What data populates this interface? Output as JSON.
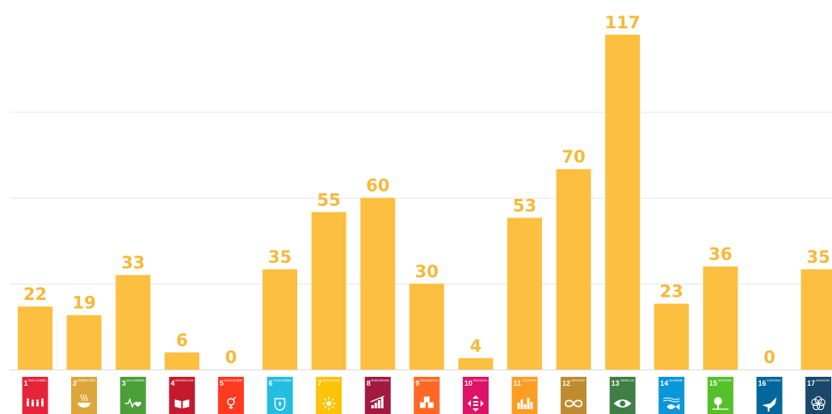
{
  "chart_data": {
    "type": "bar",
    "title": "",
    "xlabel": "",
    "ylabel": "",
    "ylim": [
      0,
      120
    ],
    "grid": true,
    "bar_color": "#FDBF40",
    "label_color": "#F6B93B",
    "grid_color": "#E6E6E6",
    "categories": [
      {
        "number": "1",
        "text": "FIN DE LA POBREZA",
        "color": "#E5243B",
        "icon": "family-icon"
      },
      {
        "number": "2",
        "text": "HAMBRE CERO",
        "color": "#DDA63A",
        "icon": "bowl-icon"
      },
      {
        "number": "3",
        "text": "SALUD Y BIENESTAR",
        "color": "#4C9F38",
        "icon": "heartbeat-icon"
      },
      {
        "number": "4",
        "text": "EDUCACIÓN DE CALIDAD",
        "color": "#C5192D",
        "icon": "book-icon"
      },
      {
        "number": "5",
        "text": "IGUALDAD DE GÉNERO",
        "color": "#FF3A21",
        "icon": "gender-icon"
      },
      {
        "number": "6",
        "text": "AGUA LIMPIA Y SANEAMIENTO",
        "color": "#26BDE2",
        "icon": "water-drop-icon"
      },
      {
        "number": "7",
        "text": "ENERGÍA ASEQUIBLE Y NO CONTAMINANTE",
        "color": "#FCC30B",
        "icon": "sun-icon"
      },
      {
        "number": "8",
        "text": "TRABAJO DECENTE Y CRECIMIENTO ECONÓMICO",
        "color": "#A21942",
        "icon": "growth-chart-icon"
      },
      {
        "number": "9",
        "text": "INDUSTRIA, INNOVACIÓN E INFRAESTRUCTURA",
        "color": "#FD6925",
        "icon": "cubes-icon"
      },
      {
        "number": "10",
        "text": "REDUCCIÓN DE LAS DESIGUALDADES",
        "color": "#DD1367",
        "icon": "equality-arrows-icon"
      },
      {
        "number": "11",
        "text": "CIUDADES Y COMUNIDADES SOSTENIBLES",
        "color": "#FD9D24",
        "icon": "city-icon"
      },
      {
        "number": "12",
        "text": "PRODUCCIÓN Y CONSUMO RESPONSABLES",
        "color": "#BF8B2E",
        "icon": "infinity-icon"
      },
      {
        "number": "13",
        "text": "ACCIÓN POR EL CLIMA",
        "color": "#3F7E44",
        "icon": "eye-globe-icon"
      },
      {
        "number": "14",
        "text": "VIDA SUBMARINA",
        "color": "#0A97D9",
        "icon": "fish-icon"
      },
      {
        "number": "15",
        "text": "VIDA DE ECOSISTEMAS TERRESTRES",
        "color": "#56C02B",
        "icon": "tree-icon"
      },
      {
        "number": "16",
        "text": "PAZ, JUSTICIA E INSTITUCIONES SÓLIDAS",
        "color": "#00689D",
        "icon": "dove-icon"
      },
      {
        "number": "17",
        "text": "ALIANZAS PARA LOGRAR LOS OBJETIVOS",
        "color": "#19486A",
        "icon": "flower-icon"
      }
    ],
    "values": [
      22,
      19,
      33,
      6,
      0,
      35,
      55,
      60,
      30,
      4,
      53,
      70,
      117,
      23,
      36,
      0,
      35
    ]
  }
}
